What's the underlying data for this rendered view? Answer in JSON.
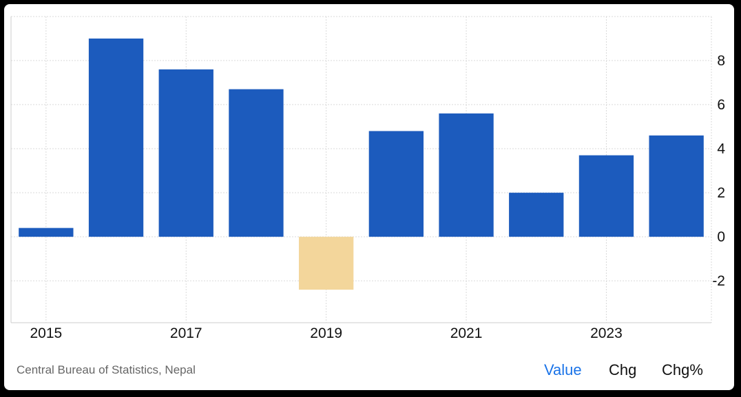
{
  "chart_data": {
    "type": "bar",
    "categories": [
      "2015",
      "2016",
      "2017",
      "2018",
      "2019",
      "2020",
      "2021",
      "2022",
      "2023",
      "2024"
    ],
    "values": [
      0.4,
      9.0,
      7.6,
      6.7,
      -2.4,
      4.8,
      5.6,
      2.0,
      3.7,
      4.6
    ],
    "x_tick_labels": [
      "2015",
      "2017",
      "2019",
      "2021",
      "2023"
    ],
    "y_ticks": [
      -2,
      0,
      2,
      4,
      6,
      8
    ],
    "ylim": [
      -3.9,
      10
    ],
    "grid": true,
    "y_axis_side": "right",
    "colors": {
      "positive": "#1c5bbd",
      "negative": "#f3d69b"
    }
  },
  "footer": {
    "source": "Central Bureau of Statistics, Nepal",
    "tabs": [
      {
        "label": "Value",
        "active": true
      },
      {
        "label": "Chg",
        "active": false
      },
      {
        "label": "Chg%",
        "active": false
      }
    ]
  }
}
